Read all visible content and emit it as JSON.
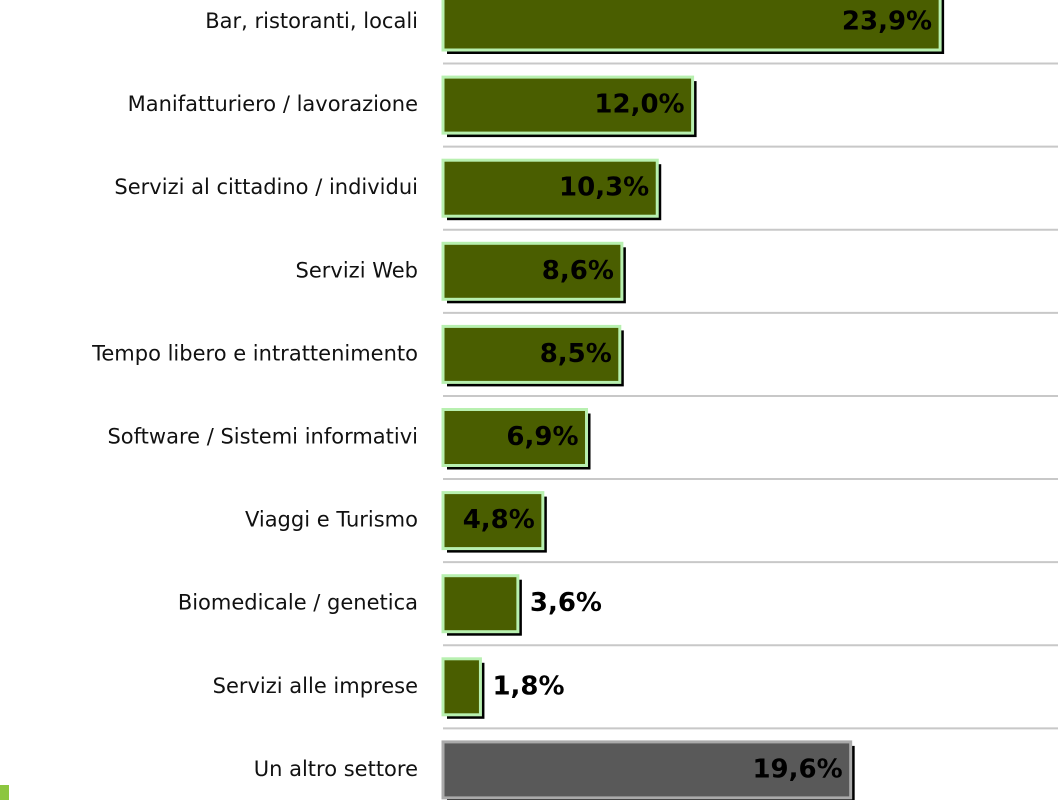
{
  "chart_data": {
    "type": "bar",
    "orientation": "horizontal",
    "categories": [
      "Bar, ristoranti, locali",
      "Manifatturiero / lavorazione",
      "Servizi al cittadino / individui",
      "Servizi Web",
      "Tempo libero e intrattenimento",
      "Software / Sistemi informativi",
      "Viaggi e Turismo",
      "Biomedicale / genetica",
      "Servizi alle imprese",
      "Un altro settore"
    ],
    "values": [
      23.9,
      12.0,
      10.3,
      8.6,
      8.5,
      6.9,
      4.8,
      3.6,
      1.8,
      19.6
    ],
    "value_labels": [
      "23,9%",
      "12,0%",
      "10,3%",
      "8,6%",
      "8,5%",
      "6,9%",
      "4,8%",
      "3,6%",
      "1,8%",
      "19,6%"
    ],
    "colors": [
      "#4a5e00",
      "#4a5e00",
      "#4a5e00",
      "#4a5e00",
      "#4a5e00",
      "#4a5e00",
      "#4a5e00",
      "#4a5e00",
      "#4a5e00",
      "#595959"
    ]
  }
}
